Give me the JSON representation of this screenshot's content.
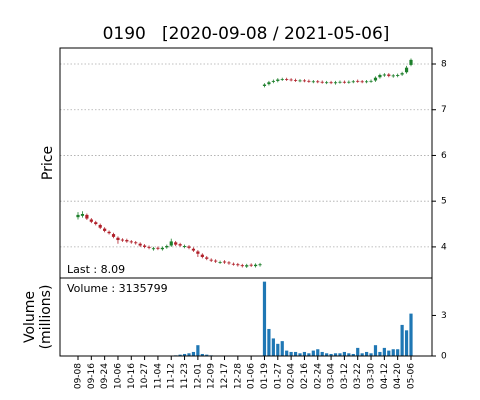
{
  "chart_data": {
    "type": "candlestick",
    "title": "0190   [2020-09-08 / 2021-05-06]",
    "ylabel": "Price",
    "volume_label": [
      "Volume",
      "(millions)"
    ],
    "last_label": "Last : 8.09",
    "volume_note": "Volume : 3135799",
    "categories": [
      "09-08",
      null,
      null,
      "09-16",
      null,
      null,
      "09-24",
      null,
      null,
      "10-06",
      null,
      null,
      "10-16",
      null,
      null,
      "10-27",
      null,
      null,
      "11-04",
      null,
      null,
      "11-12",
      null,
      null,
      "11-23",
      null,
      null,
      "12-01",
      null,
      null,
      "12-09",
      null,
      null,
      "12-17",
      null,
      null,
      "12-28",
      null,
      null,
      "01-06",
      null,
      null,
      "01-19",
      null,
      null,
      "01-27",
      null,
      null,
      "02-04",
      null,
      null,
      "02-16",
      null,
      null,
      "02-24",
      null,
      null,
      "03-04",
      null,
      null,
      "03-12",
      null,
      null,
      "03-22",
      null,
      null,
      "03-30",
      null,
      null,
      "04-12",
      null,
      null,
      "04-20",
      null,
      null,
      "05-06"
    ],
    "open": [
      4.65,
      4.68,
      4.7,
      4.6,
      4.54,
      4.48,
      4.4,
      4.33,
      4.28,
      4.2,
      4.16,
      4.15,
      4.12,
      4.1,
      4.07,
      4.03,
      4.0,
      3.95,
      3.98,
      3.95,
      3.99,
      4.03,
      4.1,
      4.06,
      4.0,
      4.01,
      3.96,
      3.9,
      3.83,
      3.77,
      3.72,
      3.7,
      3.66,
      3.68,
      3.66,
      3.63,
      3.62,
      3.6,
      3.57,
      3.61,
      3.58,
      3.6,
      7.52,
      7.56,
      7.61,
      7.63,
      7.66,
      7.67,
      7.66,
      7.65,
      7.63,
      7.64,
      7.63,
      7.61,
      7.62,
      7.61,
      7.59,
      7.6,
      7.58,
      7.6,
      7.61,
      7.6,
      7.61,
      7.63,
      7.62,
      7.61,
      7.62,
      7.64,
      7.71,
      7.75,
      7.77,
      7.73,
      7.74,
      7.77,
      7.82,
      7.98
    ],
    "high": [
      4.76,
      4.78,
      4.73,
      4.63,
      4.57,
      4.51,
      4.43,
      4.36,
      4.31,
      4.23,
      4.19,
      4.18,
      4.15,
      4.13,
      4.1,
      4.06,
      4.03,
      4.0,
      4.01,
      4.01,
      4.05,
      4.18,
      4.13,
      4.09,
      4.05,
      4.04,
      3.99,
      3.93,
      3.86,
      3.8,
      3.75,
      3.73,
      3.7,
      3.71,
      3.69,
      3.66,
      3.65,
      3.63,
      3.63,
      3.64,
      3.64,
      3.65,
      7.58,
      7.63,
      7.66,
      7.69,
      7.7,
      7.7,
      7.69,
      7.68,
      7.67,
      7.67,
      7.66,
      7.65,
      7.65,
      7.64,
      7.63,
      7.63,
      7.63,
      7.64,
      7.64,
      7.64,
      7.65,
      7.66,
      7.65,
      7.65,
      7.66,
      7.73,
      7.79,
      7.8,
      7.8,
      7.78,
      7.79,
      7.83,
      7.96,
      8.12
    ],
    "low": [
      4.6,
      4.64,
      4.59,
      4.52,
      4.47,
      4.39,
      4.32,
      4.27,
      4.19,
      4.07,
      4.11,
      4.09,
      4.07,
      4.05,
      4.0,
      3.97,
      3.95,
      3.92,
      3.93,
      3.92,
      3.96,
      4.0,
      4.02,
      4.0,
      3.97,
      3.95,
      3.89,
      3.78,
      3.75,
      3.71,
      3.67,
      3.65,
      3.63,
      3.63,
      3.61,
      3.59,
      3.57,
      3.55,
      3.54,
      3.56,
      3.55,
      3.57,
      7.49,
      7.53,
      7.58,
      7.6,
      7.63,
      7.63,
      7.62,
      7.61,
      7.6,
      7.6,
      7.59,
      7.58,
      7.58,
      7.57,
      7.56,
      7.56,
      7.55,
      7.57,
      7.57,
      7.57,
      7.58,
      7.59,
      7.58,
      7.58,
      7.59,
      7.61,
      7.68,
      7.72,
      7.71,
      7.7,
      7.71,
      7.74,
      7.79,
      7.95
    ],
    "close": [
      4.7,
      4.72,
      4.62,
      4.55,
      4.5,
      4.42,
      4.35,
      4.3,
      4.22,
      4.15,
      4.14,
      4.12,
      4.1,
      4.08,
      4.03,
      4.0,
      3.98,
      3.97,
      3.96,
      3.98,
      4.02,
      4.12,
      4.05,
      4.03,
      4.02,
      3.98,
      3.92,
      3.85,
      3.78,
      3.74,
      3.7,
      3.68,
      3.67,
      3.66,
      3.64,
      3.62,
      3.6,
      3.58,
      3.6,
      3.59,
      3.61,
      3.62,
      7.55,
      7.6,
      7.63,
      7.66,
      7.67,
      7.66,
      7.65,
      7.64,
      7.64,
      7.63,
      7.62,
      7.62,
      7.61,
      7.6,
      7.6,
      7.59,
      7.6,
      7.61,
      7.6,
      7.61,
      7.62,
      7.62,
      7.61,
      7.62,
      7.63,
      7.7,
      7.76,
      7.77,
      7.74,
      7.75,
      7.76,
      7.8,
      7.92,
      8.09
    ],
    "volume": [
      0.02,
      0.02,
      0.02,
      0.02,
      0.02,
      0.02,
      0.02,
      0.02,
      0.02,
      0.02,
      0.02,
      0.02,
      0.02,
      0.02,
      0.02,
      0.02,
      0.02,
      0.02,
      0.02,
      0.02,
      0.02,
      0.02,
      0.05,
      0.1,
      0.15,
      0.2,
      0.3,
      0.8,
      0.15,
      0.1,
      0.05,
      0.03,
      0.03,
      0.03,
      0.03,
      0.03,
      0.03,
      0.03,
      0.03,
      0.03,
      0.03,
      0.03,
      5.5,
      2.0,
      1.3,
      0.9,
      1.1,
      0.4,
      0.3,
      0.3,
      0.2,
      0.3,
      0.2,
      0.4,
      0.5,
      0.3,
      0.2,
      0.15,
      0.2,
      0.2,
      0.3,
      0.2,
      0.15,
      0.6,
      0.2,
      0.3,
      0.2,
      0.8,
      0.3,
      0.6,
      0.4,
      0.5,
      0.5,
      2.3,
      1.9,
      3.135799
    ],
    "up_color": "#1d7f2b",
    "down_color": "#b0202a",
    "volume_color": "#1f77b4",
    "ylim": [
      3.32,
      8.35
    ],
    "yticks": [
      4,
      5,
      6,
      7,
      8
    ],
    "y2lim": [
      0,
      5.77
    ],
    "y2ticks": [
      0,
      3
    ],
    "grid": true
  }
}
